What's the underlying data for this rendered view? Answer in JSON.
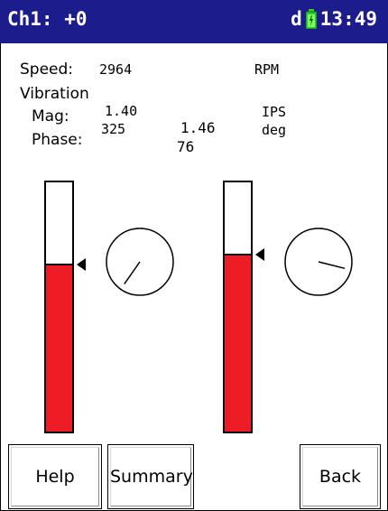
{
  "header": {
    "title": "Ch1: +0",
    "status_letter": "d",
    "time": "13:49",
    "battery_icon": "battery-icon",
    "bg_color": "#1c1c8c"
  },
  "readings": {
    "speed_label": "Speed:",
    "speed_value": "2964",
    "speed_unit": "RPM",
    "vibration_label": "Vibration",
    "mag_label": "Mag:",
    "phase_label": "Phase:",
    "mag_value_1": "1.40",
    "phase_value_1": "325",
    "mag_value_2": "1.46",
    "phase_value_2": "76",
    "mag_unit": "IPS",
    "phase_unit": "deg"
  },
  "gauges": [
    {
      "name": "left",
      "fill_fraction": 0.67,
      "color": "#ee1c25",
      "phase_deg": 325
    },
    {
      "name": "right",
      "fill_fraction": 0.71,
      "color": "#ee1c25",
      "phase_deg": 76
    }
  ],
  "buttons": {
    "help": "Help",
    "summary": "Summary",
    "back": "Back"
  }
}
